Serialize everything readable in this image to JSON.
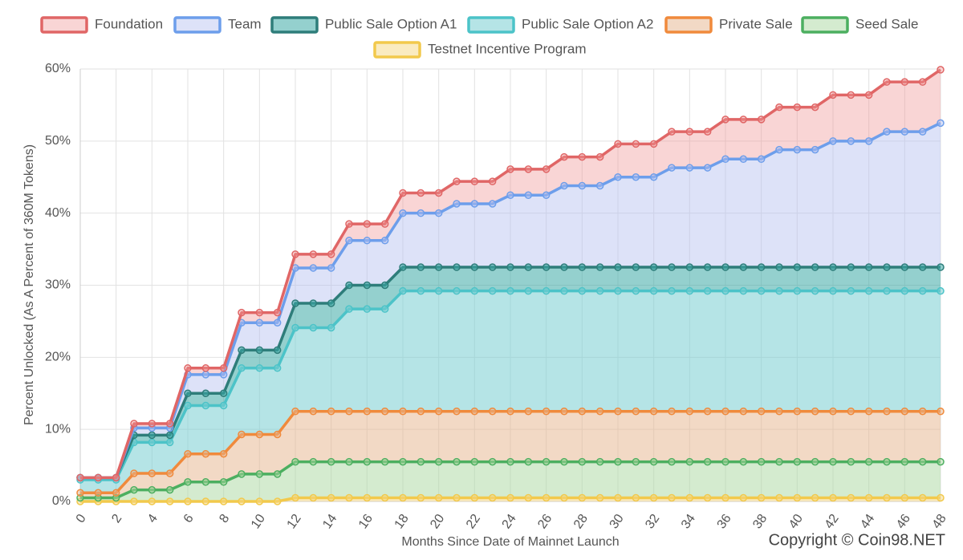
{
  "chart_data": {
    "type": "stacked-area",
    "x_label": "Months Since Date of Mainnet Launch",
    "y_label": "Percent Unlocked (As A Percent of 360M Tokens)",
    "watermark": "Copyright © Coin98.NET",
    "x": [
      0,
      1,
      2,
      3,
      4,
      5,
      6,
      7,
      8,
      9,
      10,
      11,
      12,
      13,
      14,
      15,
      16,
      17,
      18,
      19,
      20,
      21,
      22,
      23,
      24,
      25,
      26,
      27,
      28,
      29,
      30,
      31,
      32,
      33,
      34,
      35,
      36,
      37,
      38,
      39,
      40,
      41,
      42,
      43,
      44,
      45,
      46,
      47,
      48
    ],
    "xlim": [
      0,
      48
    ],
    "xticks": [
      0,
      2,
      4,
      6,
      8,
      10,
      12,
      14,
      16,
      18,
      20,
      22,
      24,
      26,
      28,
      30,
      32,
      34,
      36,
      38,
      40,
      42,
      44,
      46,
      48
    ],
    "ylim": [
      0,
      60
    ],
    "yticks": [
      {
        "value": 0,
        "label": "0%"
      },
      {
        "value": 10,
        "label": "10%"
      },
      {
        "value": 20,
        "label": "20%"
      },
      {
        "value": 30,
        "label": "30%"
      },
      {
        "value": 40,
        "label": "40%"
      },
      {
        "value": 50,
        "label": "50%"
      },
      {
        "value": 60,
        "label": "60%"
      }
    ],
    "grid": true,
    "stacked": true,
    "series": [
      {
        "name": "Foundation",
        "color": "#e06666",
        "fill": "rgba(240,150,150,0.4)",
        "values": [
          0,
          0,
          0,
          0.6,
          0.6,
          0.6,
          0.9,
          0.9,
          0.9,
          1.4,
          1.4,
          1.4,
          1.9,
          1.9,
          1.9,
          2.3,
          2.3,
          2.3,
          2.8,
          2.8,
          2.8,
          3.1,
          3.1,
          3.1,
          3.6,
          3.6,
          3.6,
          4.0,
          4.0,
          4.0,
          4.6,
          4.6,
          4.6,
          5.0,
          5.0,
          5.0,
          5.5,
          5.5,
          5.5,
          5.9,
          5.9,
          5.9,
          6.4,
          6.4,
          6.4,
          6.9,
          6.9,
          6.9,
          7.4
        ]
      },
      {
        "name": "Team",
        "color": "#6d9eeb",
        "fill": "rgba(180,190,240,0.45)",
        "values": [
          0,
          0,
          0,
          1.0,
          1.0,
          1.0,
          2.6,
          2.6,
          2.6,
          3.8,
          3.8,
          3.8,
          4.9,
          4.9,
          4.9,
          6.2,
          6.2,
          6.2,
          7.5,
          7.5,
          7.5,
          8.8,
          8.8,
          8.8,
          10.0,
          10.0,
          10.0,
          11.3,
          11.3,
          11.3,
          12.5,
          12.5,
          12.5,
          13.8,
          13.8,
          13.8,
          15.0,
          15.0,
          15.0,
          16.3,
          16.3,
          16.3,
          17.5,
          17.5,
          17.5,
          18.8,
          18.8,
          18.8,
          20.0
        ]
      },
      {
        "name": "Public Sale Option A1",
        "color": "#2e7d7a",
        "fill": "rgba(60,170,165,0.55)",
        "values": [
          0.3,
          0.3,
          0.3,
          1.0,
          1.0,
          1.0,
          1.7,
          1.7,
          1.7,
          2.5,
          2.5,
          2.5,
          3.4,
          3.4,
          3.4,
          3.3,
          3.3,
          3.3,
          3.3,
          3.3,
          3.3,
          3.3,
          3.3,
          3.3,
          3.3,
          3.3,
          3.3,
          3.3,
          3.3,
          3.3,
          3.3,
          3.3,
          3.3,
          3.3,
          3.3,
          3.3,
          3.3,
          3.3,
          3.3,
          3.3,
          3.3,
          3.3,
          3.3,
          3.3,
          3.3,
          3.3,
          3.3,
          3.3,
          3.3
        ]
      },
      {
        "name": "Public Sale Option A2",
        "color": "#4cc3c8",
        "fill": "rgba(120,205,210,0.55)",
        "values": [
          1.8,
          1.8,
          1.8,
          4.3,
          4.3,
          4.3,
          6.7,
          6.7,
          6.7,
          9.2,
          9.2,
          9.2,
          11.6,
          11.6,
          11.6,
          14.2,
          14.2,
          14.2,
          16.7,
          16.7,
          16.7,
          16.7,
          16.7,
          16.7,
          16.7,
          16.7,
          16.7,
          16.7,
          16.7,
          16.7,
          16.7,
          16.7,
          16.7,
          16.7,
          16.7,
          16.7,
          16.7,
          16.7,
          16.7,
          16.7,
          16.7,
          16.7,
          16.7,
          16.7,
          16.7,
          16.7,
          16.7,
          16.7,
          16.7
        ]
      },
      {
        "name": "Private Sale",
        "color": "#f08a3c",
        "fill": "rgba(230,180,140,0.5)",
        "values": [
          0.7,
          0.7,
          0.7,
          2.3,
          2.3,
          2.3,
          3.9,
          3.9,
          3.9,
          5.5,
          5.5,
          5.5,
          7.0,
          7.0,
          7.0,
          7.0,
          7.0,
          7.0,
          7.0,
          7.0,
          7.0,
          7.0,
          7.0,
          7.0,
          7.0,
          7.0,
          7.0,
          7.0,
          7.0,
          7.0,
          7.0,
          7.0,
          7.0,
          7.0,
          7.0,
          7.0,
          7.0,
          7.0,
          7.0,
          7.0,
          7.0,
          7.0,
          7.0,
          7.0,
          7.0,
          7.0,
          7.0,
          7.0,
          7.0
        ]
      },
      {
        "name": "Seed Sale",
        "color": "#4caf60",
        "fill": "rgba(170,215,160,0.5)",
        "values": [
          0.5,
          0.5,
          0.5,
          1.6,
          1.6,
          1.6,
          2.7,
          2.7,
          2.7,
          3.8,
          3.8,
          3.8,
          5.0,
          5.0,
          5.0,
          5.0,
          5.0,
          5.0,
          5.0,
          5.0,
          5.0,
          5.0,
          5.0,
          5.0,
          5.0,
          5.0,
          5.0,
          5.0,
          5.0,
          5.0,
          5.0,
          5.0,
          5.0,
          5.0,
          5.0,
          5.0,
          5.0,
          5.0,
          5.0,
          5.0,
          5.0,
          5.0,
          5.0,
          5.0,
          5.0,
          5.0,
          5.0,
          5.0,
          5.0
        ]
      },
      {
        "name": "Testnet Incentive Program",
        "color": "#f2c94c",
        "fill": "rgba(245,215,130,0.5)",
        "values": [
          0,
          0,
          0,
          0,
          0,
          0,
          0,
          0,
          0,
          0,
          0,
          0,
          0.5,
          0.5,
          0.5,
          0.5,
          0.5,
          0.5,
          0.5,
          0.5,
          0.5,
          0.5,
          0.5,
          0.5,
          0.5,
          0.5,
          0.5,
          0.5,
          0.5,
          0.5,
          0.5,
          0.5,
          0.5,
          0.5,
          0.5,
          0.5,
          0.5,
          0.5,
          0.5,
          0.5,
          0.5,
          0.5,
          0.5,
          0.5,
          0.5,
          0.5,
          0.5,
          0.5,
          0.5
        ]
      }
    ]
  }
}
